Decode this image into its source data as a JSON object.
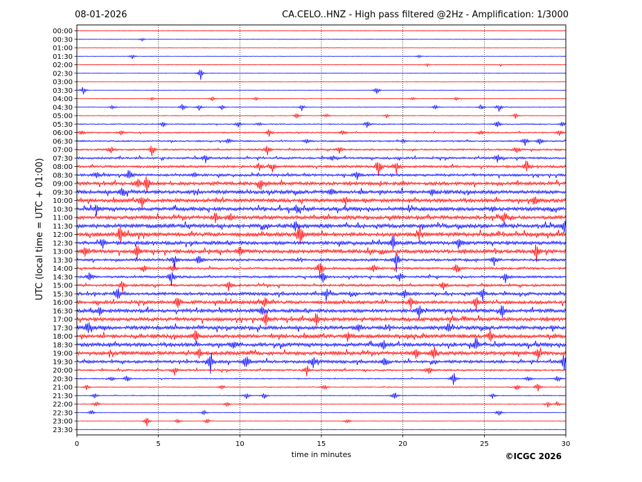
{
  "header": {
    "date": "08-01-2026",
    "title": "CA.CELO..HNZ - High pass filtered @2Hz - Amplification: 1/3000"
  },
  "footer": {
    "copyright": "©ICGC 2026"
  },
  "chart_data": {
    "type": "line",
    "title": "CA.CELO..HNZ - High pass filtered @2Hz - Amplification: 1/3000",
    "xlabel": "time in minutes",
    "ylabel": "UTC (local time = UTC + 01:00)",
    "xlim": [
      0,
      30
    ],
    "xticks": [
      "0",
      "5",
      "10",
      "15",
      "20",
      "25",
      "30"
    ],
    "vertical_gridlines_at": [
      5,
      10,
      15,
      20,
      25
    ],
    "grid": "dotted vertical gridlines",
    "colors": {
      "even_rows": "#ff0000",
      "odd_rows": "#0000ff"
    },
    "rows": [
      {
        "label": "00:00",
        "activity": 0.05,
        "events": []
      },
      {
        "label": "00:30",
        "activity": 0.05,
        "events": [
          [
            4.0,
            0.25
          ]
        ]
      },
      {
        "label": "01:00",
        "activity": 0.05,
        "events": []
      },
      {
        "label": "01:30",
        "activity": 0.06,
        "events": [
          [
            3.4,
            0.35
          ],
          [
            21.0,
            0.2
          ]
        ]
      },
      {
        "label": "02:00",
        "activity": 0.05,
        "events": [
          [
            21.5,
            0.2
          ],
          [
            26.0,
            0.2
          ]
        ]
      },
      {
        "label": "02:30",
        "activity": 0.05,
        "events": [
          [
            7.6,
            0.9
          ]
        ]
      },
      {
        "label": "03:00",
        "activity": 0.05,
        "events": []
      },
      {
        "label": "03:30",
        "activity": 0.06,
        "events": [
          [
            0.4,
            0.7
          ],
          [
            18.4,
            0.6
          ]
        ]
      },
      {
        "label": "04:00",
        "activity": 0.08,
        "events": [
          [
            4.6,
            0.3
          ],
          [
            8.3,
            0.4
          ],
          [
            11.0,
            0.3
          ],
          [
            20.6,
            0.3
          ],
          [
            23.3,
            0.3
          ]
        ]
      },
      {
        "label": "04:30",
        "activity": 0.1,
        "events": [
          [
            2.2,
            0.4
          ],
          [
            6.5,
            0.6
          ],
          [
            7.5,
            0.5
          ],
          [
            8.9,
            0.4
          ],
          [
            13.8,
            0.5
          ],
          [
            22.0,
            0.4
          ],
          [
            24.8,
            0.5
          ],
          [
            25.9,
            0.6
          ]
        ]
      },
      {
        "label": "05:00",
        "activity": 0.1,
        "events": [
          [
            13.5,
            0.4
          ],
          [
            15.3,
            0.3
          ],
          [
            19.0,
            0.3
          ],
          [
            26.9,
            0.4
          ]
        ]
      },
      {
        "label": "05:30",
        "activity": 0.18,
        "events": [
          [
            5.3,
            0.4
          ],
          [
            9.9,
            0.4
          ],
          [
            11.2,
            0.3
          ],
          [
            17.8,
            0.5
          ],
          [
            25.8,
            0.6
          ],
          [
            29.8,
            0.5
          ]
        ]
      },
      {
        "label": "06:00",
        "activity": 0.22,
        "events": [
          [
            0.3,
            0.4
          ],
          [
            2.7,
            0.4
          ],
          [
            11.8,
            0.6
          ],
          [
            16.3,
            0.4
          ],
          [
            24.8,
            0.4
          ],
          [
            29.6,
            0.5
          ]
        ]
      },
      {
        "label": "06:30",
        "activity": 0.25,
        "events": [
          [
            9.3,
            0.4
          ],
          [
            14.1,
            0.4
          ],
          [
            20.0,
            0.4
          ],
          [
            27.5,
            0.8
          ],
          [
            28.4,
            0.5
          ]
        ]
      },
      {
        "label": "07:00",
        "activity": 0.3,
        "events": [
          [
            2.1,
            0.6
          ],
          [
            4.6,
            0.8
          ],
          [
            11.7,
            0.8
          ],
          [
            16.1,
            0.5
          ],
          [
            27.0,
            0.6
          ]
        ]
      },
      {
        "label": "07:30",
        "activity": 0.35,
        "events": [
          [
            7.9,
            0.6
          ],
          [
            15.7,
            0.5
          ],
          [
            25.8,
            0.6
          ]
        ]
      },
      {
        "label": "08:00",
        "activity": 0.4,
        "events": [
          [
            11.2,
            0.8
          ],
          [
            12.0,
            0.7
          ],
          [
            18.5,
            1.6
          ],
          [
            19.6,
            0.9
          ],
          [
            27.6,
            1.2
          ]
        ]
      },
      {
        "label": "08:30",
        "activity": 0.42,
        "events": [
          [
            1.2,
            0.6
          ],
          [
            3.2,
            0.9
          ],
          [
            7.2,
            0.5
          ],
          [
            17.2,
            0.6
          ]
        ]
      },
      {
        "label": "09:00",
        "activity": 0.55,
        "events": [
          [
            3.7,
            1.0
          ],
          [
            4.3,
            1.4
          ],
          [
            11.3,
            0.7
          ]
        ]
      },
      {
        "label": "09:30",
        "activity": 0.6,
        "events": [
          [
            2.8,
            0.8
          ],
          [
            15.6,
            0.7
          ],
          [
            21.8,
            0.8
          ]
        ]
      },
      {
        "label": "10:00",
        "activity": 0.6,
        "events": [
          [
            4.0,
            1.0
          ],
          [
            16.5,
            0.7
          ],
          [
            28.1,
            0.8
          ]
        ]
      },
      {
        "label": "10:30",
        "activity": 0.62,
        "events": [
          [
            1.2,
            0.7
          ],
          [
            13.5,
            0.8
          ],
          [
            25.5,
            0.7
          ]
        ]
      },
      {
        "label": "11:00",
        "activity": 0.62,
        "events": [
          [
            8.5,
            0.8
          ],
          [
            9.4,
            0.7
          ],
          [
            26.2,
            0.7
          ]
        ]
      },
      {
        "label": "11:30",
        "activity": 0.65,
        "events": [
          [
            13.4,
            0.9
          ],
          [
            29.9,
            0.8
          ]
        ]
      },
      {
        "label": "12:00",
        "activity": 0.68,
        "events": [
          [
            2.7,
            1.2
          ],
          [
            13.7,
            2.6
          ],
          [
            21.0,
            0.8
          ]
        ]
      },
      {
        "label": "12:30",
        "activity": 0.6,
        "events": [
          [
            1.6,
            0.8
          ],
          [
            19.4,
            1.2
          ],
          [
            23.5,
            0.7
          ]
        ]
      },
      {
        "label": "13:00",
        "activity": 0.6,
        "events": [
          [
            0.5,
            1.0
          ],
          [
            3.7,
            1.0
          ],
          [
            10.0,
            0.8
          ],
          [
            28.2,
            1.3
          ]
        ]
      },
      {
        "label": "13:30",
        "activity": 0.42,
        "events": [
          [
            6.0,
            1.0
          ],
          [
            7.5,
            0.8
          ],
          [
            19.6,
            1.6
          ],
          [
            25.6,
            0.8
          ]
        ]
      },
      {
        "label": "14:00",
        "activity": 0.38,
        "events": [
          [
            4.1,
            0.7
          ],
          [
            5.9,
            0.8
          ],
          [
            14.9,
            1.2
          ],
          [
            18.2,
            0.8
          ],
          [
            23.3,
            0.8
          ]
        ]
      },
      {
        "label": "14:30",
        "activity": 0.38,
        "events": [
          [
            0.8,
            0.7
          ],
          [
            5.8,
            1.2
          ],
          [
            15.1,
            0.9
          ],
          [
            19.8,
            0.8
          ],
          [
            26.3,
            0.8
          ]
        ]
      },
      {
        "label": "15:00",
        "activity": 0.4,
        "events": [
          [
            2.8,
            1.0
          ],
          [
            9.3,
            0.7
          ],
          [
            22.5,
            0.7
          ]
        ]
      },
      {
        "label": "15:30",
        "activity": 0.5,
        "events": [
          [
            2.5,
            1.0
          ],
          [
            15.3,
            0.9
          ],
          [
            20.1,
            0.8
          ],
          [
            24.9,
            1.0
          ]
        ]
      },
      {
        "label": "16:00",
        "activity": 0.55,
        "events": [
          [
            6.2,
            0.8
          ],
          [
            11.5,
            0.9
          ],
          [
            20.5,
            0.9
          ],
          [
            24.5,
            1.2
          ]
        ]
      },
      {
        "label": "16:30",
        "activity": 0.6,
        "events": [
          [
            1.4,
            0.8
          ],
          [
            11.4,
            0.8
          ],
          [
            21.0,
            0.9
          ],
          [
            26.1,
            0.9
          ]
        ]
      },
      {
        "label": "17:00",
        "activity": 0.6,
        "events": [
          [
            11.6,
            1.2
          ],
          [
            14.7,
            1.0
          ]
        ]
      },
      {
        "label": "17:30",
        "activity": 0.62,
        "events": [
          [
            0.7,
            0.9
          ],
          [
            17.3,
            0.8
          ],
          [
            22.8,
            0.8
          ]
        ]
      },
      {
        "label": "18:00",
        "activity": 0.62,
        "events": [
          [
            7.3,
            1.0
          ],
          [
            16.6,
            0.8
          ],
          [
            25.4,
            0.9
          ]
        ]
      },
      {
        "label": "18:30",
        "activity": 0.62,
        "events": [
          [
            9.6,
            0.9
          ],
          [
            18.8,
            0.8
          ],
          [
            24.5,
            1.0
          ]
        ]
      },
      {
        "label": "19:00",
        "activity": 0.62,
        "events": [
          [
            7.5,
            0.8
          ],
          [
            20.8,
            1.0
          ],
          [
            21.9,
            1.2
          ],
          [
            28.3,
            0.8
          ]
        ]
      },
      {
        "label": "19:30",
        "activity": 0.48,
        "events": [
          [
            8.2,
            1.6
          ],
          [
            10.4,
            1.2
          ],
          [
            14.5,
            0.9
          ],
          [
            18.9,
            0.8
          ],
          [
            29.9,
            1.2
          ]
        ]
      },
      {
        "label": "20:00",
        "activity": 0.32,
        "events": [
          [
            6.0,
            0.7
          ],
          [
            14.1,
            0.8
          ],
          [
            21.6,
            0.7
          ]
        ]
      },
      {
        "label": "20:30",
        "activity": 0.18,
        "events": [
          [
            2.1,
            0.5
          ],
          [
            3.1,
            0.6
          ],
          [
            23.1,
            1.1
          ],
          [
            27.7,
            0.5
          ],
          [
            29.5,
            0.6
          ]
        ]
      },
      {
        "label": "21:00",
        "activity": 0.14,
        "events": [
          [
            0.6,
            0.4
          ],
          [
            8.9,
            0.4
          ],
          [
            15.2,
            0.4
          ],
          [
            27.0,
            0.5
          ],
          [
            28.3,
            0.7
          ]
        ]
      },
      {
        "label": "21:30",
        "activity": 0.12,
        "events": [
          [
            1.1,
            0.4
          ],
          [
            10.4,
            0.5
          ],
          [
            11.5,
            0.5
          ],
          [
            19.5,
            0.6
          ],
          [
            25.5,
            0.4
          ]
        ]
      },
      {
        "label": "22:00",
        "activity": 0.1,
        "events": [
          [
            1.2,
            0.5
          ],
          [
            9.2,
            0.5
          ],
          [
            28.9,
            0.5
          ],
          [
            29.5,
            0.5
          ]
        ]
      },
      {
        "label": "22:30",
        "activity": 0.08,
        "events": [
          [
            0.9,
            0.5
          ],
          [
            7.8,
            0.4
          ],
          [
            25.9,
            0.6
          ]
        ]
      },
      {
        "label": "23:00",
        "activity": 0.08,
        "events": [
          [
            4.3,
            0.7
          ],
          [
            6.2,
            0.4
          ],
          [
            8.0,
            0.4
          ],
          [
            16.6,
            0.4
          ]
        ]
      },
      {
        "label": "23:30",
        "activity": 0.05,
        "events": []
      }
    ]
  }
}
